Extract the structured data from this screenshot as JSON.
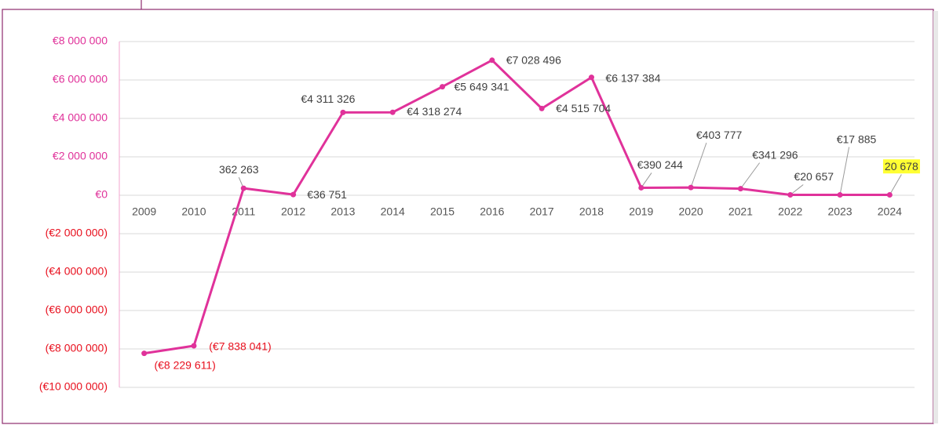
{
  "chart_data": {
    "type": "line",
    "categories": [
      "2009",
      "2010",
      "2011",
      "2012",
      "2013",
      "2014",
      "2015",
      "2016",
      "2017",
      "2018",
      "2019",
      "2020",
      "2021",
      "2022",
      "2023",
      "2024"
    ],
    "series": [
      {
        "color": "#e0329a",
        "values": [
          -8229611,
          -7838041,
          362263,
          36751,
          4311326,
          4318274,
          5649341,
          7028496,
          4515704,
          6137384,
          390244,
          403777,
          341296,
          20657,
          17885,
          20678
        ],
        "value_labels": [
          "(€8 229 611)",
          "(€7 838 041)",
          "362 263",
          "€36 751",
          "€4 311 326",
          "€4 318 274",
          "€5 649 341",
          "€7 028 496",
          "€4 515 704",
          "€6 137 384",
          "€390 244",
          "€403 777",
          "€341 296",
          "€20 657",
          "€17 885",
          "20 678"
        ]
      }
    ],
    "ylim": [
      -10000000,
      8000000
    ],
    "yticks": [
      {
        "value": -10000000,
        "label": "(€10 000 000)"
      },
      {
        "value": -8000000,
        "label": "(€8 000 000)"
      },
      {
        "value": -6000000,
        "label": "(€6 000 000)"
      },
      {
        "value": -4000000,
        "label": "(€4 000 000)"
      },
      {
        "value": -2000000,
        "label": "(€2 000 000)"
      },
      {
        "value": 0,
        "label": "€0"
      },
      {
        "value": 2000000,
        "label": "€2 000 000"
      },
      {
        "value": 4000000,
        "label": "€4 000 000"
      },
      {
        "value": 6000000,
        "label": "€6 000 000"
      },
      {
        "value": 8000000,
        "label": "€8 000 000"
      }
    ],
    "grid": true
  }
}
